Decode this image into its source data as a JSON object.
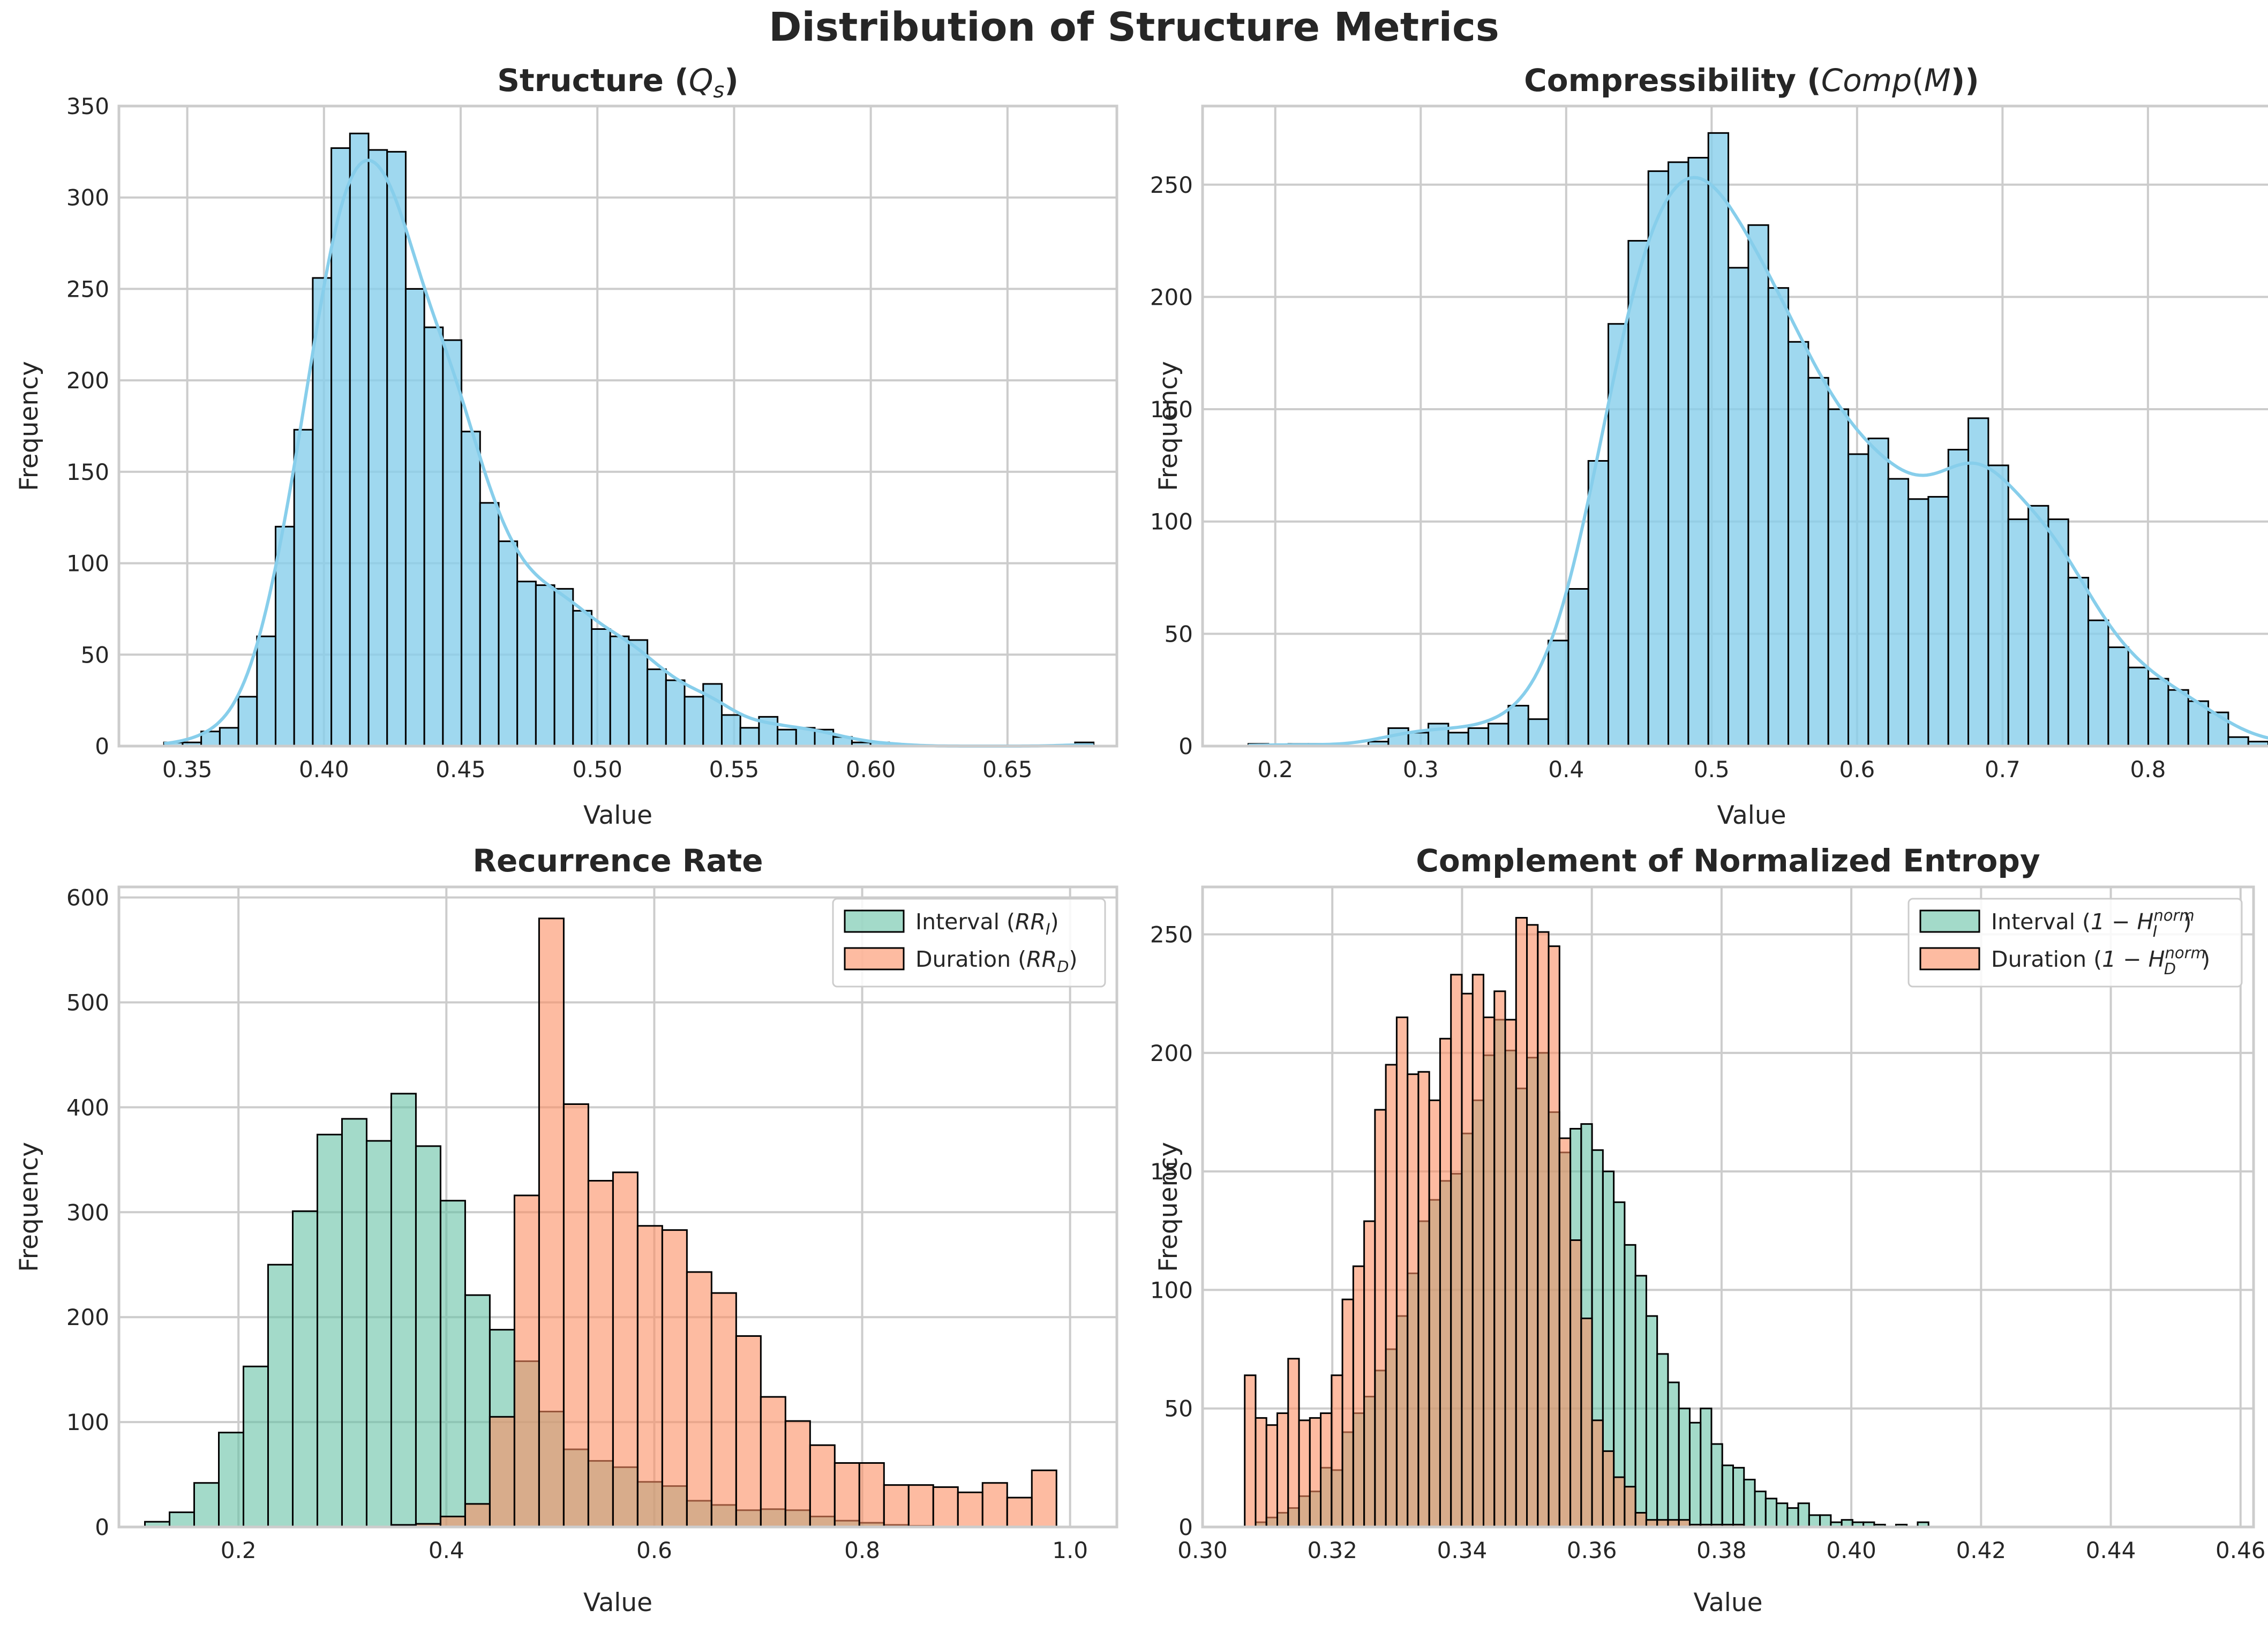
{
  "title": "Distribution of Structure Metrics",
  "colors": {
    "blue": "#87CEEB",
    "green": "#66c2a5",
    "orange": "#fc8d62",
    "edge": "#000000",
    "grid": "#cccccc"
  },
  "chart_data": [
    {
      "type": "bar",
      "title": "Structure (Q_s)",
      "title_parts": [
        "Structure (",
        "Q",
        "s",
        ")"
      ],
      "xlabel": "Value",
      "ylabel": "Frequency",
      "xlim": [
        0.325,
        0.69
      ],
      "ylim": [
        0,
        350
      ],
      "xticks": [
        "0.35",
        "0.40",
        "0.45",
        "0.50",
        "0.55",
        "0.60",
        "0.65"
      ],
      "xtick_values": [
        0.35,
        0.4,
        0.45,
        0.5,
        0.55,
        0.6,
        0.65
      ],
      "yticks": [
        0,
        50,
        100,
        150,
        200,
        250,
        300,
        350
      ],
      "grid": true,
      "kde": true,
      "series": [
        {
          "color": "blue",
          "bin_start": 0.3415,
          "bin_width": 0.0068,
          "values": [
            2,
            2,
            8,
            10,
            27,
            60,
            120,
            173,
            256,
            327,
            335,
            326,
            325,
            250,
            229,
            222,
            172,
            133,
            112,
            90,
            88,
            86,
            74,
            64,
            60,
            58,
            42,
            36,
            27,
            34,
            17,
            10,
            16,
            9,
            10,
            9,
            5,
            2,
            2,
            1,
            0,
            0,
            0,
            0,
            0,
            0,
            0,
            0,
            0,
            2
          ]
        }
      ]
    },
    {
      "type": "bar",
      "title": "Compressibility (Comp(M))",
      "title_parts": [
        "Compressibility (",
        "Comp",
        "(",
        "M",
        "))"
      ],
      "xlabel": "Value",
      "ylabel": "Frequency",
      "xlim": [
        0.15,
        0.905
      ],
      "ylim": [
        0,
        285
      ],
      "xticks": [
        "0.2",
        "0.3",
        "0.4",
        "0.5",
        "0.6",
        "0.7",
        "0.8",
        "0.9"
      ],
      "xtick_values": [
        0.2,
        0.3,
        0.4,
        0.5,
        0.6,
        0.7,
        0.8,
        0.9
      ],
      "yticks": [
        0,
        50,
        100,
        150,
        200,
        250
      ],
      "grid": true,
      "kde": true,
      "series": [
        {
          "color": "blue",
          "bin_start": 0.1815,
          "bin_width": 0.01375,
          "values": [
            1,
            0,
            1,
            1,
            0,
            0,
            2,
            8,
            6,
            10,
            6,
            8,
            10,
            18,
            12,
            47,
            70,
            127,
            188,
            225,
            256,
            260,
            262,
            273,
            213,
            232,
            204,
            180,
            164,
            150,
            130,
            137,
            119,
            110,
            111,
            132,
            146,
            125,
            101,
            107,
            101,
            75,
            56,
            44,
            35,
            30,
            25,
            20,
            15,
            4,
            2,
            2,
            2
          ]
        }
      ]
    },
    {
      "type": "bar",
      "title": "Recurrence Rate",
      "xlabel": "Value",
      "ylabel": "Frequency",
      "xlim": [
        0.085,
        1.045
      ],
      "ylim": [
        0,
        610
      ],
      "xticks": [
        "0.2",
        "0.4",
        "0.6",
        "0.8",
        "1.0"
      ],
      "xtick_values": [
        0.2,
        0.4,
        0.6,
        0.8,
        1.0
      ],
      "yticks": [
        0,
        100,
        200,
        300,
        400,
        500,
        600
      ],
      "grid": true,
      "legend": "top-right",
      "series": [
        {
          "name": "Interval (RR_I)",
          "name_parts": [
            "Interval (",
            "RR",
            "I",
            ")"
          ],
          "color": "green",
          "bin_start": 0.11,
          "bin_width": 0.0237,
          "values": [
            5,
            14,
            42,
            90,
            153,
            250,
            301,
            374,
            389,
            368,
            413,
            363,
            311,
            221,
            188,
            158,
            110,
            74,
            63,
            57,
            43,
            39,
            25,
            21,
            16,
            17,
            16,
            10,
            6,
            4,
            2,
            1,
            0,
            0,
            0,
            0
          ]
        },
        {
          "name": "Duration (RR_D)",
          "name_parts": [
            "Duration (",
            "RR",
            "D",
            ")"
          ],
          "color": "orange",
          "bin_start": 0.11,
          "bin_width": 0.0237,
          "values": [
            0,
            0,
            0,
            0,
            0,
            0,
            0,
            0,
            0,
            0,
            2,
            3,
            10,
            22,
            105,
            316,
            580,
            403,
            330,
            338,
            287,
            283,
            243,
            223,
            182,
            124,
            101,
            78,
            61,
            61,
            40,
            40,
            38,
            33,
            42,
            28,
            54
          ]
        }
      ]
    },
    {
      "type": "bar",
      "title": "Complement of Normalized Entropy",
      "xlabel": "Value",
      "ylabel": "Frequency",
      "xlim": [
        0.3,
        0.462
      ],
      "ylim": [
        0,
        270
      ],
      "xticks": [
        "0.30",
        "0.32",
        "0.34",
        "0.36",
        "0.38",
        "0.40",
        "0.42",
        "0.44",
        "0.46"
      ],
      "xtick_values": [
        0.3,
        0.32,
        0.34,
        0.36,
        0.38,
        0.4,
        0.42,
        0.44,
        0.46
      ],
      "yticks": [
        0,
        50,
        100,
        150,
        200,
        250
      ],
      "grid": true,
      "legend": "top-right",
      "series": [
        {
          "name": "Interval (1 - H_I^norm)",
          "name_parts": [
            "Interval (",
            "1 − H",
            "I",
            "norm",
            ")"
          ],
          "color": "green",
          "bin_start": 0.3065,
          "bin_width": 0.001673,
          "values": [
            0,
            2,
            4,
            6,
            8,
            13,
            15,
            25,
            24,
            40,
            48,
            55,
            66,
            75,
            89,
            107,
            129,
            138,
            146,
            149,
            166,
            180,
            199,
            214,
            201,
            185,
            198,
            200,
            175,
            158,
            168,
            170,
            159,
            150,
            137,
            119,
            106,
            89,
            73,
            61,
            50,
            44,
            50,
            35,
            26,
            25,
            20,
            15,
            12,
            10,
            8,
            10,
            5,
            5,
            2,
            3,
            2,
            2,
            1,
            0,
            1,
            0,
            2,
            0,
            0,
            0,
            0,
            0,
            0,
            0,
            0,
            0,
            0,
            0,
            0,
            0,
            0,
            0,
            0,
            0,
            0,
            0,
            0,
            0,
            0,
            0,
            0,
            0,
            0,
            0
          ]
        },
        {
          "name": "Duration (1 - H_D^norm)",
          "name_parts": [
            "Duration (",
            "1 − H",
            "D",
            "norm",
            ")"
          ],
          "color": "orange",
          "bin_start": 0.3065,
          "bin_width": 0.001673,
          "values": [
            64,
            46,
            43,
            48,
            71,
            45,
            46,
            48,
            64,
            96,
            110,
            129,
            176,
            195,
            215,
            191,
            192,
            180,
            206,
            233,
            225,
            233,
            215,
            226,
            214,
            257,
            254,
            251,
            245,
            164,
            121,
            88,
            45,
            32,
            21,
            17,
            6,
            3,
            3,
            3,
            3,
            1,
            1,
            1,
            1,
            1
          ]
        }
      ]
    }
  ]
}
